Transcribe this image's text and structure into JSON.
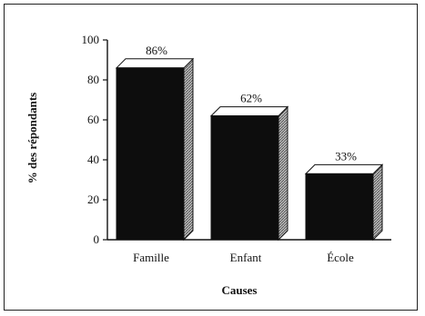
{
  "chart_data": {
    "type": "bar",
    "categories": [
      "Famille",
      "Enfant",
      "École"
    ],
    "values": [
      86,
      62,
      33
    ],
    "data_labels": [
      "86%",
      "62%",
      "33%"
    ],
    "xlabel": "Causes",
    "ylabel": "% des répondants",
    "ylim": [
      0,
      100
    ],
    "yticks": [
      0,
      20,
      40,
      60,
      80,
      100
    ],
    "grid": false,
    "bar_style": "3d",
    "colors": {
      "bar_front": "#0d0d0d",
      "bar_top": "#ffffff",
      "bar_side": "#9a9a9a",
      "axis": "#111111"
    }
  }
}
